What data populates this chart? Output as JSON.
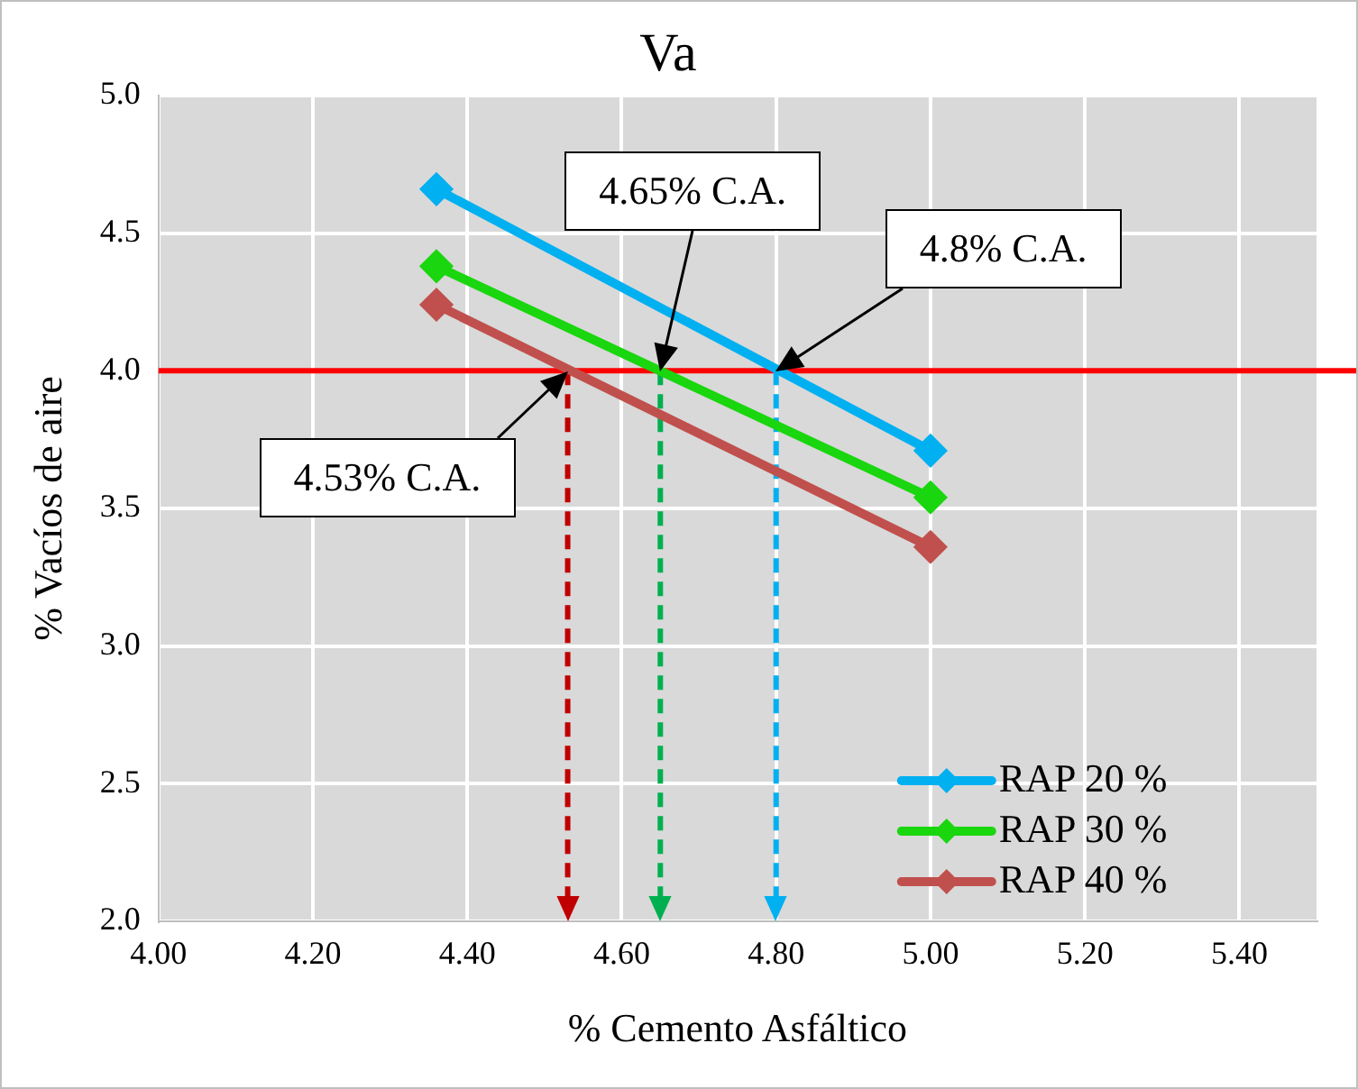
{
  "chart_data": {
    "type": "line",
    "title": "Va",
    "xlabel": "% Cemento Asfáltico",
    "ylabel": "% Vacíos de aire",
    "xlim": [
      4.0,
      5.5
    ],
    "xticks": [
      {
        "value": 4.0,
        "label": "4.00"
      },
      {
        "value": 4.2,
        "label": "4.20"
      },
      {
        "value": 4.4,
        "label": "4.40"
      },
      {
        "value": 4.6,
        "label": "4.60"
      },
      {
        "value": 4.8,
        "label": "4.80"
      },
      {
        "value": 5.0,
        "label": "5.00"
      },
      {
        "value": 5.2,
        "label": "5.20"
      },
      {
        "value": 5.4,
        "label": "5.40"
      }
    ],
    "ylim": [
      2.0,
      5.0
    ],
    "yticks": [
      {
        "value": 2.0,
        "label": "2.0"
      },
      {
        "value": 2.5,
        "label": "2.5"
      },
      {
        "value": 3.0,
        "label": "3.0"
      },
      {
        "value": 3.5,
        "label": "3.5"
      },
      {
        "value": 4.0,
        "label": "4.0"
      },
      {
        "value": 4.5,
        "label": "4.5"
      },
      {
        "value": 5.0,
        "label": "5.0"
      }
    ],
    "x": [
      4.36,
      5.0
    ],
    "grid": true,
    "legend": "bottom right",
    "marker": "diamond",
    "line_style": "solid",
    "series": [
      {
        "name": "RAP 20 %",
        "color": "#00b0f0",
        "values": [
          4.66,
          3.71
        ]
      },
      {
        "name": "RAP 30 %",
        "color": "#19d60e",
        "values": [
          4.38,
          3.54
        ]
      },
      {
        "name": "RAP 40 %",
        "color": "#c0504d",
        "values": [
          4.24,
          3.36
        ]
      }
    ],
    "ref_lines": [
      {
        "axis": "y",
        "value": 4.0,
        "color": "#ff0000"
      },
      {
        "axis": "x",
        "value": 4.65,
        "color": "#00b050",
        "line_style": "dashed"
      },
      {
        "axis": "x",
        "value": 4.8,
        "color": "#00b0f0",
        "line_style": "dashed"
      },
      {
        "axis": "x",
        "value": 4.53,
        "label": "4.53% C.A.",
        "color": "#c00000",
        "line_style": "dashed"
      }
    ],
    "annotations": [
      "4.65% C.A.",
      "4.8% C.A."
    ]
  }
}
